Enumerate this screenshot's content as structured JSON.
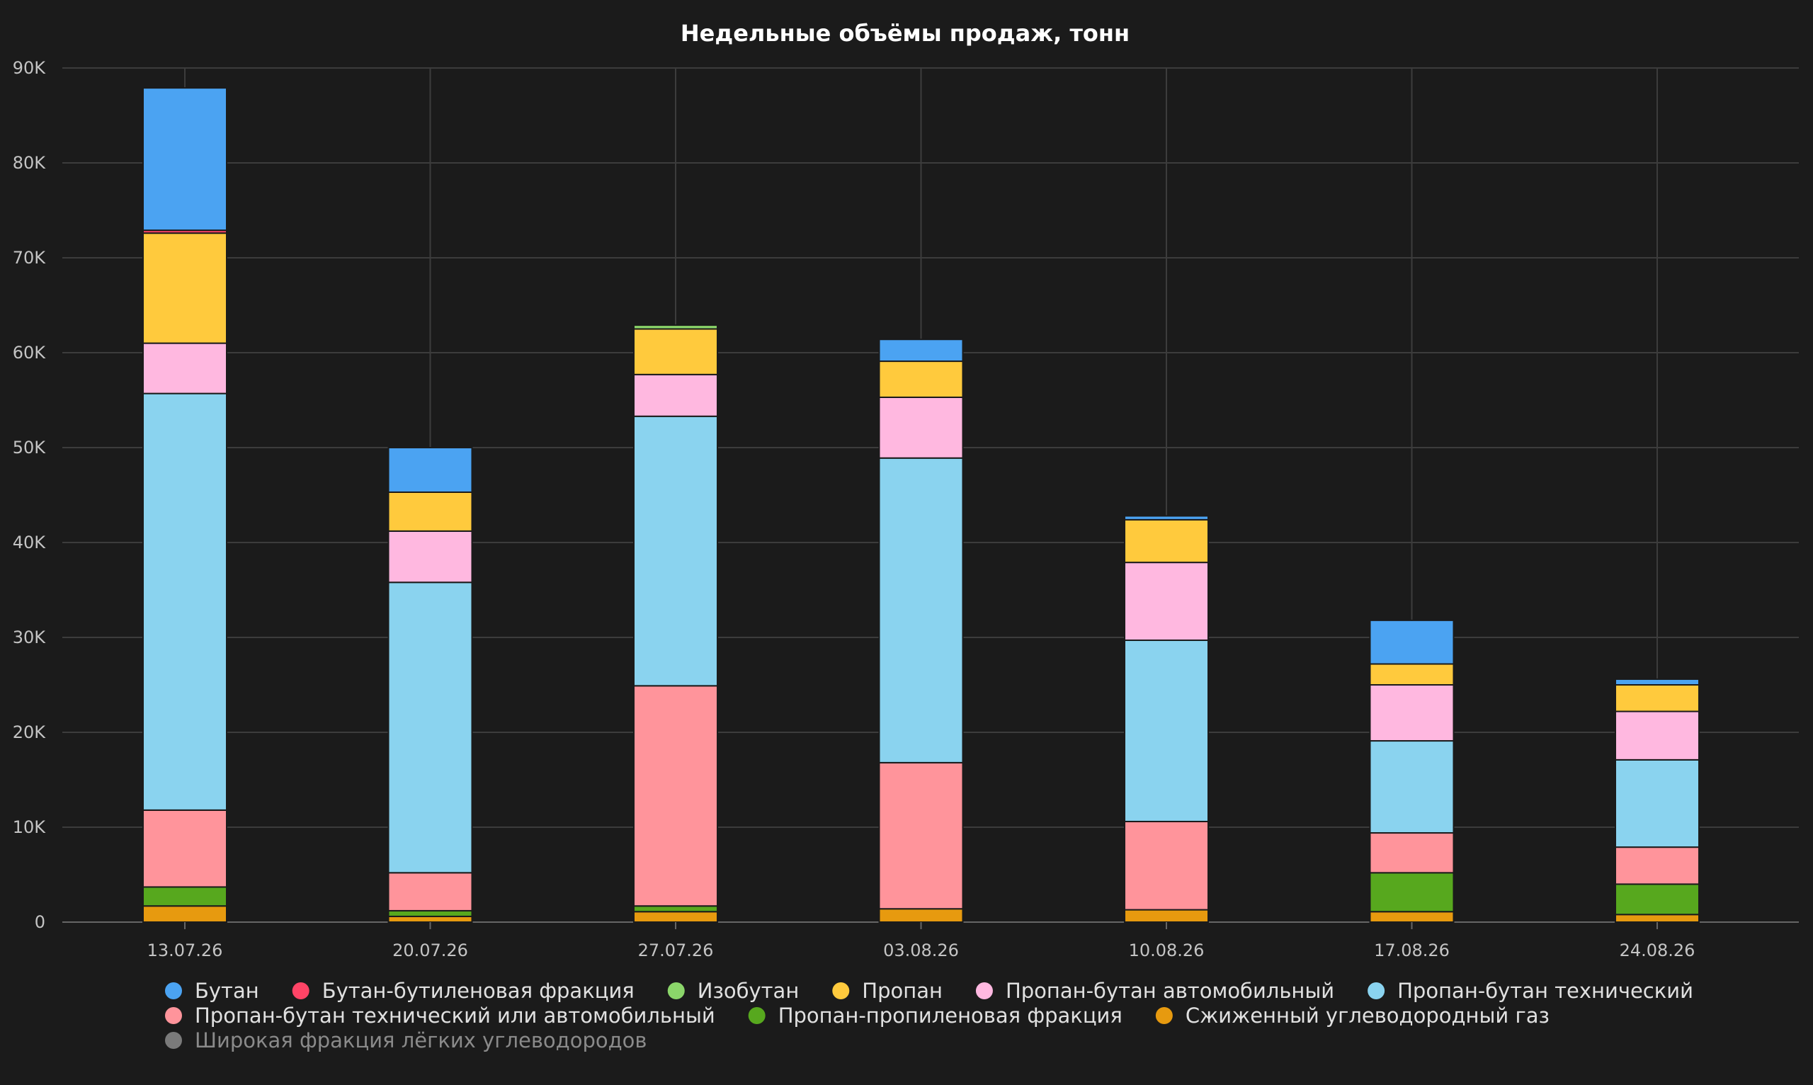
{
  "chart_data": {
    "type": "bar",
    "stacked": true,
    "title": "Недельные объёмы продаж, тонн",
    "xlabel": "",
    "ylabel": "",
    "ylim": [
      0,
      90000
    ],
    "y_ticks": [
      0,
      10000,
      20000,
      30000,
      40000,
      50000,
      60000,
      70000,
      80000,
      90000
    ],
    "y_tick_labels": [
      "0",
      "10K",
      "20K",
      "30K",
      "40K",
      "50K",
      "60K",
      "70K",
      "80K",
      "90K"
    ],
    "grid": true,
    "legend_position": "bottom-left",
    "categories": [
      "13.07.26",
      "20.07.26",
      "27.07.26",
      "03.08.26",
      "10.08.26",
      "17.08.26",
      "24.08.26"
    ],
    "series": [
      {
        "name": "Сжиженный углеводородный газ",
        "color": "#e79a0f",
        "values": [
          1700,
          600,
          1100,
          1400,
          1300,
          1100,
          800
        ]
      },
      {
        "name": "Пропан-пропиленовая фракция",
        "color": "#57a81e",
        "values": [
          2000,
          600,
          600,
          0,
          0,
          4100,
          3200
        ]
      },
      {
        "name": "Пропан-бутан технический или автомобильный",
        "color": "#ff949b",
        "values": [
          8100,
          4000,
          23200,
          15400,
          9300,
          4200,
          3900
        ]
      },
      {
        "name": "Пропан-бутан технический",
        "color": "#8ad3ef",
        "values": [
          43900,
          30600,
          28400,
          32100,
          19100,
          9700,
          9200
        ]
      },
      {
        "name": "Пропан-бутан автомобильный",
        "color": "#ffb8e0",
        "values": [
          5300,
          5400,
          4400,
          6400,
          8200,
          5900,
          5100
        ]
      },
      {
        "name": "Пропан",
        "color": "#ffca3d",
        "values": [
          11600,
          4100,
          4800,
          3800,
          4500,
          2200,
          2800
        ]
      },
      {
        "name": "Изобутан",
        "color": "#8bd66a",
        "values": [
          0,
          0,
          400,
          0,
          0,
          0,
          0
        ]
      },
      {
        "name": "Бутан-бутиленовая фракция",
        "color": "#ff4466",
        "values": [
          300,
          0,
          0,
          0,
          0,
          0,
          0
        ]
      },
      {
        "name": "Бутан",
        "color": "#4ba3f2",
        "values": [
          15000,
          4700,
          0,
          2300,
          400,
          4600,
          600
        ]
      },
      {
        "name": "Широкая фракция лёгких углеводородов",
        "color": "#7a7a7a",
        "values": [
          0,
          0,
          0,
          0,
          0,
          0,
          0
        ],
        "disabled": true
      }
    ],
    "legend_order": [
      "Бутан",
      "Бутан-бутиленовая фракция",
      "Изобутан",
      "Пропан",
      "Пропан-бутан автомобильный",
      "Пропан-бутан технический",
      "Пропан-бутан технический или автомобильный",
      "Пропан-пропиленовая фракция",
      "Сжиженный углеводородный газ",
      "Широкая фракция лёгких углеводородов"
    ]
  },
  "colors": {
    "background": "#1b1b1b",
    "grid": "#3c3c3c",
    "axis": "#666666",
    "bar_stroke": "#1b1b1b"
  }
}
